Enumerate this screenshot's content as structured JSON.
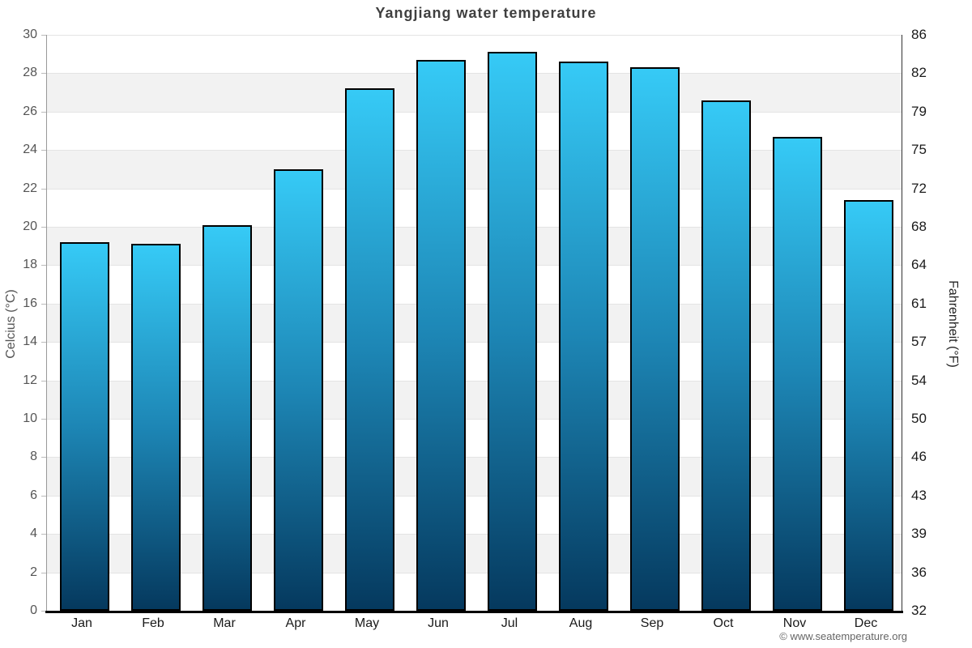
{
  "page": {
    "copyright": "© www.seatemperature.org"
  },
  "chart_data": {
    "type": "bar",
    "title": "Yangjiang water temperature",
    "categories": [
      "Jan",
      "Feb",
      "Mar",
      "Apr",
      "May",
      "Jun",
      "Jul",
      "Aug",
      "Sep",
      "Oct",
      "Nov",
      "Dec"
    ],
    "series": [
      {
        "name": "Water temperature (Celcius)",
        "values": [
          19.2,
          19.1,
          20.1,
          23.0,
          27.2,
          28.7,
          29.1,
          28.6,
          28.3,
          26.6,
          24.7,
          21.4
        ]
      }
    ],
    "ylabel_left": "Celcius (°C)",
    "ylabel_right": "Fahrenheit (°F)",
    "ylim_left": [
      0,
      30
    ],
    "ytick_step_left": 2,
    "yticks_left": [
      30,
      28,
      26,
      24,
      22,
      20,
      18,
      16,
      14,
      12,
      10,
      8,
      6,
      4,
      2,
      0
    ],
    "yticks_right": [
      "86",
      "82",
      "79",
      "75",
      "72",
      "68",
      "64",
      "61",
      "57",
      "54",
      "50",
      "46",
      "43",
      "39",
      "36",
      "32"
    ],
    "legend": "none",
    "grid": "horizontal gridlines every 2°C with alternating shaded bands",
    "colors": {
      "bar_top": "#36CAF6",
      "bar_mid": "#1D86B5",
      "bar_bottom": "#05395E",
      "bar_border": "#000000",
      "band_alt": "#f2f2f2",
      "band_main": "#ffffff",
      "gridline": "#e4e4e4",
      "axis_left_line": "#999999",
      "axis_right_line": "#333333",
      "axis_tickmark": "#bbbbbb",
      "baseline": "#000000",
      "title_color": "#3f3f3f",
      "tick_left_color": "#555555",
      "tick_right_color": "#1a1a1a",
      "ylabel_left_color": "#555555",
      "ylabel_right_color": "#222222",
      "copyright_color": "#666666"
    }
  }
}
